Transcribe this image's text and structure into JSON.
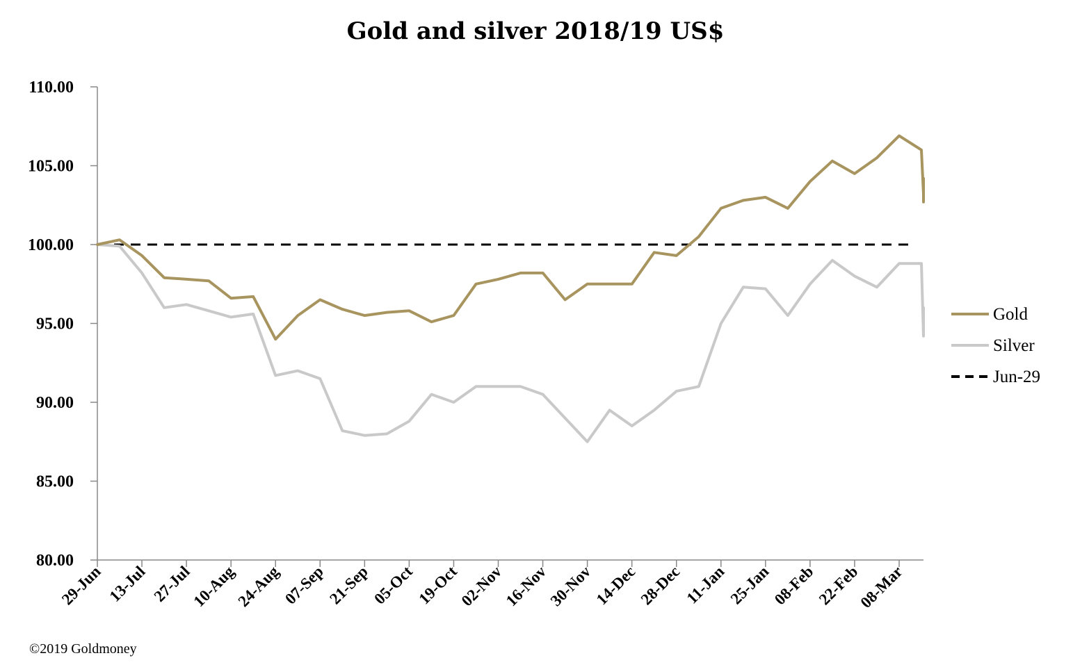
{
  "copyright": "©2019 Goldmoney",
  "chart_data": {
    "type": "line",
    "title": "Gold and silver 2018/19  US$",
    "xlabel": "",
    "ylabel": "",
    "ylim": [
      80,
      110
    ],
    "yticks": [
      "80.00",
      "85.00",
      "90.00",
      "95.00",
      "100.00",
      "105.00",
      "110.00"
    ],
    "xticks": [
      "29-Jun",
      "13-Jul",
      "27-Jul",
      "10-Aug",
      "24-Aug",
      "07-Sep",
      "21-Sep",
      "05-Oct",
      "19-Oct",
      "02-Nov",
      "16-Nov",
      "30-Nov",
      "14-Dec",
      "28-Dec",
      "11-Jan",
      "25-Jan",
      "08-Feb",
      "22-Feb",
      "08-Mar"
    ],
    "x_start": "29-Jun",
    "x_step_days": 7,
    "grid": false,
    "legend_position": "right",
    "reference_line": {
      "name": "Jun-29",
      "value": 100,
      "color": "#000000",
      "style": "dashed"
    },
    "series": [
      {
        "name": "Gold",
        "color": "#A8945E",
        "values": [
          100.0,
          100.3,
          99.3,
          97.9,
          97.8,
          97.7,
          96.6,
          96.7,
          94.0,
          95.5,
          96.5,
          95.9,
          95.5,
          95.7,
          95.8,
          95.1,
          95.5,
          97.5,
          97.8,
          98.2,
          98.2,
          96.5,
          97.5,
          97.5,
          97.5,
          99.5,
          99.3,
          100.5,
          102.3,
          102.8,
          103.0,
          102.3,
          104.0,
          105.3,
          104.5,
          105.5,
          106.9,
          106.0,
          103.2,
          102.7,
          104.2,
          104.0
        ]
      },
      {
        "name": "Silver",
        "color": "#C9C9C9",
        "values": [
          100.0,
          99.9,
          98.2,
          96.0,
          96.2,
          95.8,
          95.4,
          95.6,
          91.7,
          92.0,
          91.5,
          88.2,
          87.9,
          88.0,
          88.8,
          90.5,
          90.0,
          91.0,
          91.0,
          91.0,
          90.5,
          89.0,
          87.5,
          89.5,
          88.5,
          89.5,
          90.7,
          91.0,
          95.0,
          97.3,
          97.2,
          95.5,
          97.5,
          99.0,
          98.0,
          97.3,
          98.8,
          98.8,
          94.2,
          95.2,
          96.0,
          95.4
        ]
      }
    ]
  }
}
